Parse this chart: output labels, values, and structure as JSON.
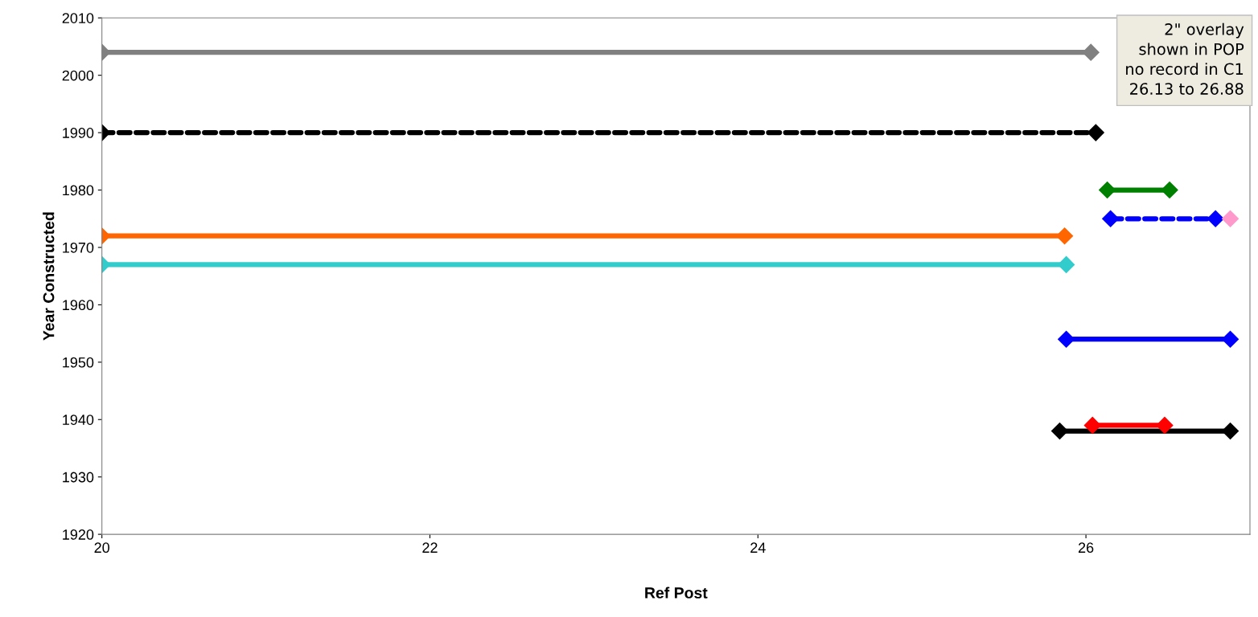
{
  "chart_data": {
    "type": "line",
    "xlabel": "Ref Post",
    "ylabel": "Year Constructed",
    "xlim": [
      20,
      27
    ],
    "xticks": [
      20,
      22,
      24,
      26
    ],
    "ylim": [
      1920,
      2010
    ],
    "yticks": [
      1920,
      1930,
      1940,
      1950,
      1960,
      1970,
      1980,
      1990,
      2000,
      2010
    ],
    "grid": false,
    "legend": false,
    "marker": "diamond",
    "series": [
      {
        "color": "#808080",
        "x": [
          20,
          26.03
        ],
        "values": [
          2004,
          2004
        ],
        "line_style": "solid"
      },
      {
        "color": "#000000",
        "x": [
          20,
          26.06
        ],
        "values": [
          1990,
          1990
        ],
        "line_style": "dashed"
      },
      {
        "color": "#008000",
        "x": [
          26.13,
          26.51
        ],
        "values": [
          1980,
          1980
        ],
        "line_style": "solid"
      },
      {
        "color": "#0000ff",
        "x": [
          26.15,
          26.79
        ],
        "values": [
          1975,
          1975
        ],
        "line_style": "dashed"
      },
      {
        "color": "#ff99cc",
        "x": [
          26.88
        ],
        "values": [
          1975
        ],
        "line_style": "solid"
      },
      {
        "color": "#ff6600",
        "x": [
          20,
          25.87
        ],
        "values": [
          1972,
          1972
        ],
        "line_style": "solid"
      },
      {
        "color": "#33cccc",
        "x": [
          20,
          25.88
        ],
        "values": [
          1967,
          1967
        ],
        "line_style": "solid"
      },
      {
        "color": "#0000ff",
        "x": [
          25.88,
          26.88
        ],
        "values": [
          1954,
          1954
        ],
        "line_style": "solid"
      },
      {
        "color": "#000000",
        "x": [
          25.84,
          26.88
        ],
        "values": [
          1938,
          1938
        ],
        "line_style": "solid"
      },
      {
        "color": "#ff0000",
        "x": [
          26.04,
          26.48
        ],
        "values": [
          1939,
          1939
        ],
        "line_style": "solid"
      }
    ],
    "annotations": [
      "2\" overlay\nshown in POP\nno record in C1\n26.13 to 26.88"
    ]
  }
}
